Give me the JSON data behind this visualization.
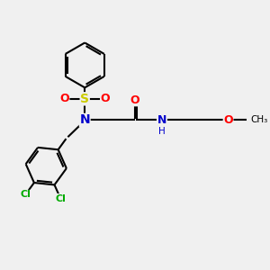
{
  "background_color": "#f0f0f0",
  "atom_colors": {
    "C": "#000000",
    "N": "#0000cc",
    "O": "#ff0000",
    "S": "#cccc00",
    "Cl": "#00aa00",
    "H": "#888888"
  },
  "bond_color": "#000000",
  "bond_width": 1.5,
  "font_size_atom": 8.5,
  "scale": 1.0
}
